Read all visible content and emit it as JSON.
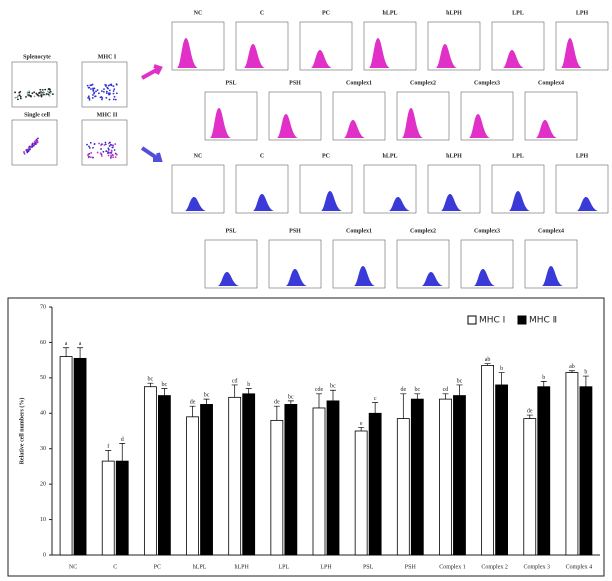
{
  "panels": {
    "gating": [
      "Splenocyte",
      "MHC I",
      "Single cell",
      "MHC II"
    ],
    "histogram_rows": [
      [
        "NC",
        "C",
        "PC",
        "hLPL",
        "hLPH",
        "LPL",
        "LPH"
      ],
      [
        "PSL",
        "PSH",
        "Complex1",
        "Complex2",
        "Complex3",
        "Complex4"
      ],
      [
        "NC",
        "C",
        "PC",
        "hLPL",
        "hLPH",
        "LPL",
        "LPH"
      ],
      [
        "PSL",
        "PSH",
        "Complex1",
        "Complex2",
        "Complex3",
        "Complex4"
      ]
    ]
  },
  "chart_data": {
    "type": "bar",
    "y_label": "Relative cell numbers (%)",
    "categories": [
      "NC",
      "C",
      "PC",
      "hLPL",
      "hLPH",
      "LPL",
      "LPH",
      "PSL",
      "PSH",
      "Complex 1",
      "Complex 2",
      "Complex 3",
      "Complex 4"
    ],
    "series": [
      {
        "name": "MHC Ⅰ",
        "color": "#ffffff",
        "values": [
          56,
          26.5,
          47.5,
          39,
          44.5,
          38,
          41.5,
          35,
          38.5,
          44,
          53.5,
          38.5,
          51.5
        ],
        "errors": [
          2.5,
          3,
          1,
          3,
          3.5,
          4,
          4,
          1,
          7,
          1.5,
          0.5,
          1,
          0.5
        ],
        "letters": [
          "a",
          "f",
          "bc",
          "de",
          "cd",
          "de",
          "cde",
          "e",
          "de",
          "cd",
          "ab",
          "de",
          "ab"
        ]
      },
      {
        "name": "MHC Ⅱ",
        "color": "#000000",
        "values": [
          55.5,
          26.5,
          45,
          42.5,
          45.5,
          42.5,
          43.5,
          40,
          44,
          45,
          48,
          47.5,
          47.5
        ],
        "errors": [
          3,
          5,
          2,
          1.5,
          1.5,
          1,
          3,
          3,
          1.5,
          3,
          3.5,
          1.5,
          3
        ],
        "letters": [
          "a",
          "d",
          "bc",
          "bc",
          "b",
          "bc",
          "bc",
          "c",
          "bc",
          "bc",
          "b",
          "b",
          "b"
        ]
      }
    ],
    "ylim": [
      0,
      70
    ],
    "yticks": [
      0,
      10,
      20,
      30,
      40,
      50,
      60,
      70
    ]
  }
}
